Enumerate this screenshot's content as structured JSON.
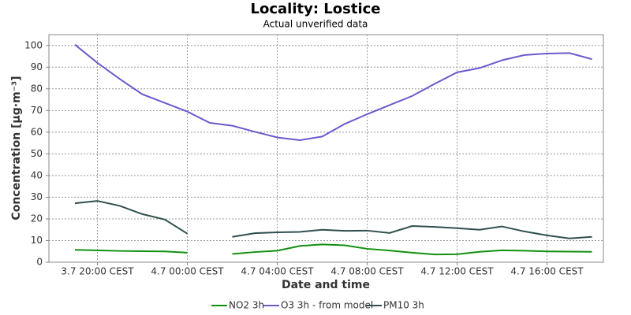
{
  "chart_data": {
    "type": "line",
    "title": "Locality: Lostice",
    "subtitle": "Actual unverified data",
    "x_label": "Date and time",
    "y_label": "Concentration [µg·m⁻³]",
    "categories": [
      null,
      "3.7 20:00 CEST",
      null,
      null,
      null,
      "4.7 00:00 CEST",
      null,
      null,
      null,
      "4.7 04:00 CEST",
      null,
      null,
      null,
      "4.7 08:00 CEST",
      null,
      null,
      null,
      "4.7 12:00 CEST",
      null,
      null,
      null,
      "4.7 16:00 CEST",
      null,
      null
    ],
    "series": [
      {
        "name": "NO2 3h",
        "color": "#11900f",
        "values": [
          5.7,
          5.5,
          5.2,
          5.1,
          5.0,
          4.4,
          null,
          3.8,
          4.7,
          5.3,
          7.5,
          8.2,
          7.8,
          6.2,
          5.4,
          4.4,
          3.6,
          3.7,
          4.8,
          5.5,
          5.3,
          5.0,
          4.9,
          4.8
        ]
      },
      {
        "name": "O3 3h - from model",
        "color": "#6a5acd",
        "values": [
          100.4,
          92,
          84.5,
          77.5,
          73.5,
          69.5,
          64.3,
          63,
          60.2,
          57.6,
          56.3,
          58,
          63.8,
          68.3,
          72.5,
          76.7,
          82.3,
          87.6,
          89.6,
          93.2,
          95.6,
          96.3,
          96.5,
          93.7
        ]
      },
      {
        "name": "PM10 3h",
        "color": "#2f4f4f",
        "values": [
          27.2,
          28.3,
          26,
          22.2,
          19.7,
          13.2,
          null,
          11.7,
          13.4,
          13.8,
          14,
          15,
          14.5,
          14.6,
          13.5,
          16.7,
          16.3,
          15.7,
          15,
          16.5,
          14.2,
          12.4,
          11,
          11.7
        ]
      }
    ],
    "ylim": [
      0,
      105
    ],
    "yticks": [
      0,
      10,
      20,
      30,
      40,
      50,
      60,
      70,
      80,
      90,
      100
    ],
    "grid": true,
    "legend": "bottom"
  }
}
